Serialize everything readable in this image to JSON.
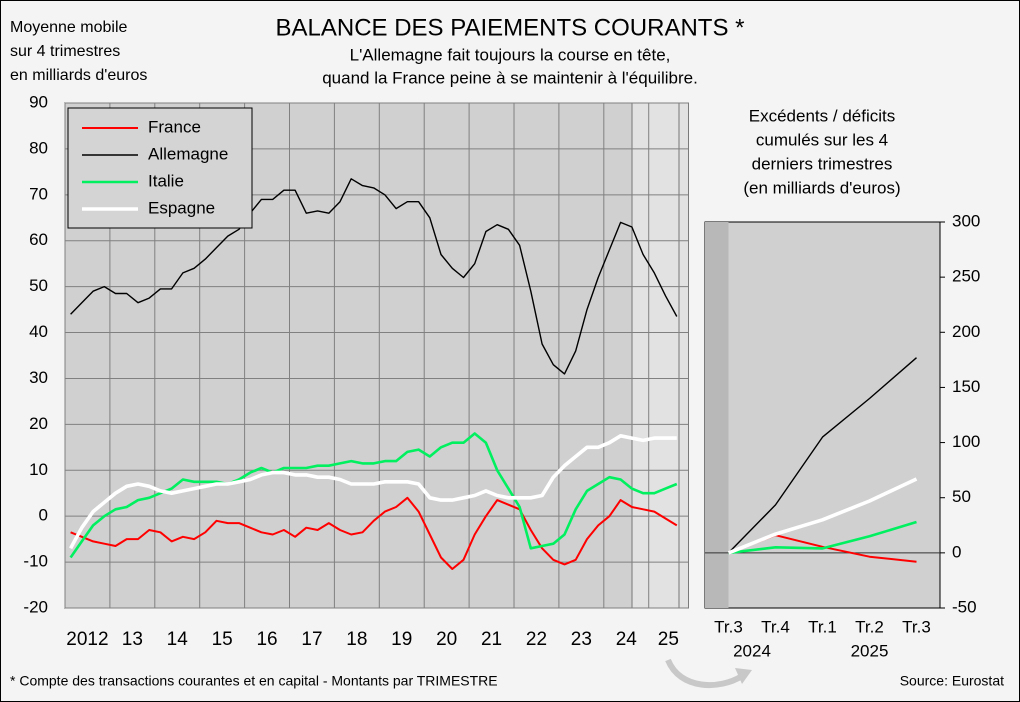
{
  "title": "BALANCE DES PAIEMENTS COURANTS *",
  "subtitle": [
    "L'Allemagne fait toujours la course en tête,",
    "quand la France peine à se maintenir à l'équilibre."
  ],
  "footnote": "* Compte des transactions courantes et en capital - Montants par TRIMESTRE",
  "source": "Source: Eurostat",
  "chart_data": [
    {
      "type": "line",
      "y_label": [
        "Moyenne mobile",
        "sur 4 trimestres",
        "en milliards d'euros"
      ],
      "x": [
        2012.125,
        2012.375,
        2012.625,
        2012.875,
        2013.125,
        2013.375,
        2013.625,
        2013.875,
        2014.125,
        2014.375,
        2014.625,
        2014.875,
        2015.125,
        2015.375,
        2015.625,
        2015.875,
        2016.125,
        2016.375,
        2016.625,
        2016.875,
        2017.125,
        2017.375,
        2017.625,
        2017.875,
        2018.125,
        2018.375,
        2018.625,
        2018.875,
        2019.125,
        2019.375,
        2019.625,
        2019.875,
        2020.125,
        2020.375,
        2020.625,
        2020.875,
        2021.125,
        2021.375,
        2021.625,
        2021.875,
        2022.125,
        2022.375,
        2022.625,
        2022.875,
        2023.125,
        2023.375,
        2023.625,
        2023.875,
        2024.125,
        2024.375,
        2024.625,
        2024.875,
        2025.125,
        2025.375,
        2025.625
      ],
      "series": [
        {
          "name": "France",
          "color": "#ff0000",
          "values": [
            -3.5,
            -4.5,
            -5.5,
            -6,
            -6.5,
            -5,
            -5,
            -3,
            -3.5,
            -5.5,
            -4.5,
            -5,
            -3.5,
            -1,
            -1.5,
            -1.5,
            -2.5,
            -3.5,
            -4,
            -3,
            -4.5,
            -2.5,
            -3,
            -1.5,
            -3,
            -4,
            -3.5,
            -1,
            1,
            2,
            4,
            1,
            -4,
            -9,
            -11.5,
            -9.5,
            -4,
            0,
            3.5,
            2.5,
            1.5,
            -3,
            -7,
            -9.5,
            -10.5,
            -9.5,
            -5,
            -2,
            0,
            3.5,
            2,
            1.5,
            1,
            -0.5,
            -2
          ]
        },
        {
          "name": "Allemagne",
          "color": "#000000",
          "values": [
            44,
            46.5,
            49,
            50,
            48.5,
            48.5,
            46.5,
            47.5,
            49.5,
            49.5,
            53,
            54,
            56,
            58.5,
            61,
            62.5,
            66,
            69,
            69,
            71,
            71,
            66,
            66.5,
            66,
            68.5,
            73.5,
            72,
            71.5,
            70,
            67,
            68.5,
            68.5,
            65,
            57,
            54,
            52,
            55,
            62,
            63.5,
            62.5,
            59,
            49,
            37.5,
            33,
            31,
            36,
            45,
            52,
            58,
            64,
            63,
            57,
            53,
            48,
            43.5
          ]
        },
        {
          "name": "Italie",
          "color": "#00f060",
          "values": [
            -9,
            -5.5,
            -2,
            0,
            1.5,
            2,
            3.5,
            4,
            5,
            6,
            8,
            7.5,
            7.5,
            7.5,
            7,
            8,
            9.5,
            10.5,
            9.5,
            10.5,
            10.5,
            10.5,
            11,
            11,
            11.5,
            12,
            11.5,
            11.5,
            12,
            12,
            14,
            14.5,
            13,
            15,
            16,
            16,
            18,
            16,
            10,
            6,
            2,
            -7,
            -6.5,
            -6,
            -4,
            1.5,
            5.5,
            7,
            8.5,
            8,
            6,
            5,
            5,
            6,
            7
          ]
        },
        {
          "name": "Espagne",
          "color": "#ffffff",
          "values": [
            -7,
            -2.5,
            1,
            3,
            5,
            6.5,
            7,
            6.5,
            5.5,
            5,
            5.5,
            6,
            6.5,
            7,
            7,
            7.5,
            8,
            9,
            9.5,
            9.5,
            9,
            9,
            8.5,
            8.5,
            8,
            7,
            7,
            7,
            7.5,
            7.5,
            7.5,
            7,
            4,
            3.5,
            3.5,
            4,
            4.5,
            5.5,
            4.5,
            4,
            4,
            4,
            4.5,
            8.5,
            11,
            13,
            15,
            15,
            16,
            17.5,
            17,
            16.5,
            17,
            17,
            17
          ]
        }
      ],
      "xlim": [
        2012,
        2025.875
      ],
      "xticks": [
        2012,
        {
          "value": 2013,
          "label": "13"
        },
        {
          "value": 2014,
          "label": "14"
        },
        {
          "value": 2015,
          "label": "15"
        },
        {
          "value": 2016,
          "label": "16"
        },
        {
          "value": 2017,
          "label": "17"
        },
        {
          "value": 2018,
          "label": "18"
        },
        {
          "value": 2019,
          "label": "19"
        },
        {
          "value": 2020,
          "label": "20"
        },
        {
          "value": 2021,
          "label": "21"
        },
        {
          "value": 2022,
          "label": "22"
        },
        {
          "value": 2023,
          "label": "23"
        },
        {
          "value": 2024,
          "label": "24"
        },
        {
          "value": 2025,
          "label": "25"
        }
      ],
      "ylim": [
        -20,
        90
      ],
      "yticks": [
        -20,
        -10,
        0,
        10,
        20,
        30,
        40,
        50,
        60,
        70,
        80,
        90
      ],
      "grid": true,
      "legend": "upper left"
    },
    {
      "type": "line",
      "title": [
        "Excédents / déficits",
        "cumulés sur les 4",
        "derniers trimestres",
        "(en milliards d'euros)"
      ],
      "category_groups": [
        {
          "name": "2024",
          "categories": [
            "Tr.3",
            "Tr.4"
          ]
        },
        {
          "name": "2025",
          "categories": [
            "Tr.1",
            "Tr.2",
            "Tr.3"
          ]
        }
      ],
      "series": [
        {
          "name": "France",
          "color": "#ff0000",
          "values": [
            0,
            16,
            5.5,
            -3.5,
            -8
          ]
        },
        {
          "name": "Allemagne",
          "color": "#000000",
          "values": [
            0,
            43.5,
            105,
            140,
            177
          ]
        },
        {
          "name": "Italie",
          "color": "#00f060",
          "values": [
            0,
            5,
            4,
            15,
            28
          ]
        },
        {
          "name": "Espagne",
          "color": "#ffffff",
          "values": [
            0,
            17,
            30,
            47,
            67
          ]
        }
      ],
      "ylim": [
        -50,
        300
      ],
      "yticks": [
        -50,
        0,
        50,
        100,
        150,
        200,
        250,
        300
      ],
      "grid": false,
      "y_axis_side": "right"
    }
  ]
}
